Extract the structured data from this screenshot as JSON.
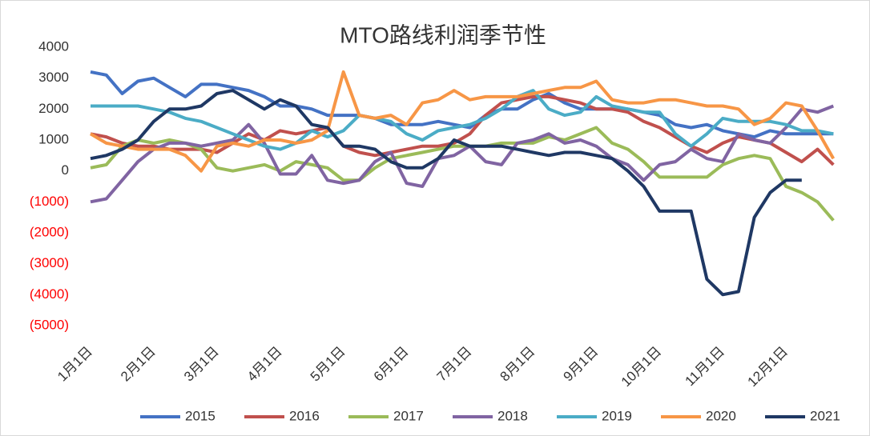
{
  "chart_data": {
    "type": "line",
    "title": "MTO路线利润季节性",
    "categories": [
      "1月1日",
      null,
      null,
      null,
      "2月1日",
      null,
      null,
      null,
      "3月1日",
      null,
      null,
      null,
      "4月1日",
      null,
      null,
      null,
      "5月1日",
      null,
      null,
      null,
      "6月1日",
      null,
      null,
      null,
      "7月1日",
      null,
      null,
      null,
      "8月1日",
      null,
      null,
      null,
      "9月1日",
      null,
      null,
      null,
      "10月1日",
      null,
      null,
      null,
      "11月1日",
      null,
      null,
      null,
      "12月1日",
      null,
      null,
      null
    ],
    "ylim": [
      -5000,
      4000
    ],
    "yticks": [
      {
        "value": -5000,
        "label": "(5000)"
      },
      {
        "value": -4000,
        "label": "(4000)"
      },
      {
        "value": -3000,
        "label": "(3000)"
      },
      {
        "value": -2000,
        "label": "(2000)"
      },
      {
        "value": -1000,
        "label": "(1000)"
      },
      0,
      1000,
      2000,
      3000,
      4000
    ],
    "negative_tick_color": "#ff0000",
    "grid": false,
    "legend": "bottom",
    "series": [
      {
        "name": "2015",
        "color": "#4472c4",
        "values": [
          3200,
          3100,
          2500,
          2900,
          3000,
          2700,
          2400,
          2800,
          2800,
          2700,
          2600,
          2400,
          2100,
          2100,
          2000,
          1800,
          1800,
          1800,
          1700,
          1500,
          1500,
          1500,
          1600,
          1500,
          1400,
          1800,
          2000,
          2000,
          2300,
          2500,
          2200,
          2000,
          2000,
          2000,
          2000,
          1900,
          1800,
          1500,
          1400,
          1500,
          1300,
          1200,
          1100,
          1300,
          1200,
          1200,
          1200,
          1200
        ]
      },
      {
        "name": "2016",
        "color": "#c0504d",
        "values": [
          1200,
          1100,
          900,
          800,
          800,
          700,
          700,
          700,
          600,
          900,
          1200,
          1000,
          1300,
          1200,
          1300,
          1400,
          800,
          600,
          500,
          600,
          700,
          800,
          800,
          900,
          1200,
          1800,
          2200,
          2300,
          2400,
          2400,
          2300,
          2200,
          2000,
          2000,
          1900,
          1600,
          1400,
          1100,
          800,
          600,
          900,
          1100,
          1000,
          900,
          600,
          300,
          700,
          200
        ]
      },
      {
        "name": "2017",
        "color": "#9bbb59",
        "values": [
          100,
          200,
          800,
          1000,
          900,
          1000,
          900,
          700,
          100,
          0,
          100,
          200,
          0,
          300,
          200,
          100,
          -300,
          -300,
          100,
          400,
          500,
          600,
          700,
          800,
          800,
          800,
          900,
          900,
          900,
          1100,
          1000,
          1200,
          1400,
          900,
          700,
          300,
          -200,
          -200,
          -200,
          -200,
          200,
          400,
          500,
          400,
          -500,
          -700,
          -1000,
          -1600
        ]
      },
      {
        "name": "2018",
        "color": "#8064a2",
        "values": [
          -1000,
          -900,
          -300,
          300,
          700,
          900,
          900,
          800,
          900,
          1000,
          1500,
          900,
          -100,
          -100,
          500,
          -300,
          -400,
          -300,
          300,
          600,
          -400,
          -500,
          400,
          500,
          800,
          300,
          200,
          900,
          1000,
          1200,
          900,
          1000,
          800,
          400,
          200,
          -300,
          200,
          300,
          700,
          400,
          300,
          1200,
          1000,
          900,
          1400,
          2000,
          1900,
          2100
        ]
      },
      {
        "name": "2019",
        "color": "#4bacc6",
        "values": [
          2100,
          2100,
          2100,
          2100,
          2000,
          1900,
          1700,
          1600,
          1400,
          1200,
          1000,
          800,
          700,
          900,
          1300,
          1100,
          1300,
          1800,
          1700,
          1600,
          1200,
          1000,
          1300,
          1400,
          1500,
          1700,
          2000,
          2400,
          2600,
          2000,
          1800,
          1900,
          2400,
          2100,
          2000,
          1900,
          1900,
          1200,
          800,
          1200,
          1700,
          1600,
          1600,
          1600,
          1500,
          1300,
          1300,
          1200
        ]
      },
      {
        "name": "2020",
        "color": "#f79646",
        "values": [
          1200,
          900,
          800,
          700,
          700,
          700,
          500,
          0,
          800,
          900,
          800,
          1000,
          1000,
          900,
          1000,
          1300,
          3200,
          1800,
          1700,
          1800,
          1500,
          2200,
          2300,
          2600,
          2300,
          2400,
          2400,
          2400,
          2500,
          2600,
          2700,
          2700,
          2900,
          2300,
          2200,
          2200,
          2300,
          2300,
          2200,
          2100,
          2100,
          2000,
          1500,
          1700,
          2200,
          2100,
          1300,
          400
        ]
      },
      {
        "name": "2021",
        "color": "#1f3864",
        "values": [
          400,
          500,
          700,
          1000,
          1600,
          2000,
          2000,
          2100,
          2500,
          2600,
          2300,
          2000,
          2300,
          2100,
          1500,
          1400,
          800,
          800,
          700,
          300,
          100,
          100,
          400,
          1000,
          800,
          800,
          800,
          700,
          600,
          500,
          600,
          600,
          500,
          400,
          0,
          -500,
          -1300,
          -1300,
          -1300,
          -3500,
          -4000,
          -3900,
          -1500,
          -700,
          -300,
          -300,
          null,
          null
        ]
      }
    ]
  }
}
